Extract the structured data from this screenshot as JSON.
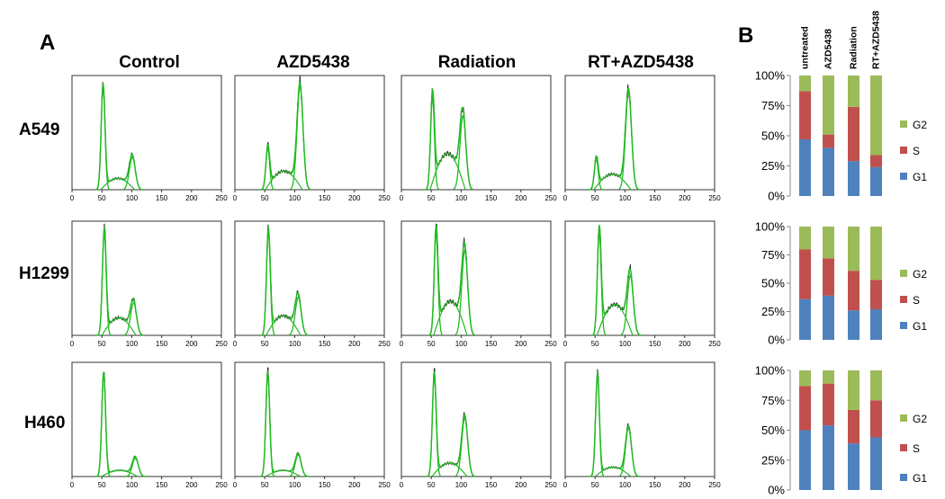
{
  "panel_labels": {
    "a": "A",
    "b": "B"
  },
  "histogram_x_ticks": [
    "0",
    "50",
    "100",
    "150",
    "200",
    "250"
  ],
  "chart_data": [
    {
      "type": "line",
      "panel": "A",
      "title": "",
      "xlabel": "",
      "ylabel": "",
      "xlim": [
        0,
        250
      ],
      "x_ticks": [
        0,
        50,
        100,
        150,
        200,
        250
      ],
      "column_labels": [
        "Control",
        "AZD5438",
        "Radiation",
        "RT+AZD5438"
      ],
      "row_labels": [
        "A549",
        "H1299",
        "H460"
      ],
      "series_colors": {
        "measured": "#222222",
        "fit": "#22bb22"
      },
      "histograms": {
        "A549": [
          {
            "g1_pos": 52,
            "g1_h": 0.95,
            "s_h": 0.11,
            "g2_pos": 101,
            "g2_h": 0.3
          },
          {
            "g1_pos": 55,
            "g1_h": 0.38,
            "s_h": 0.18,
            "g2_pos": 109,
            "g2_h": 0.95
          },
          {
            "g1_pos": 52,
            "g1_h": 0.85,
            "s_h": 0.35,
            "g2_pos": 103,
            "g2_h": 0.68
          },
          {
            "g1_pos": 52,
            "g1_h": 0.28,
            "s_h": 0.15,
            "g2_pos": 106,
            "g2_h": 0.9
          }
        ],
        "H1299": [
          {
            "g1_pos": 54,
            "g1_h": 0.95,
            "s_h": 0.17,
            "g2_pos": 103,
            "g2_h": 0.3
          },
          {
            "g1_pos": 56,
            "g1_h": 0.95,
            "s_h": 0.19,
            "g2_pos": 106,
            "g2_h": 0.35
          },
          {
            "g1_pos": 58,
            "g1_h": 0.94,
            "s_h": 0.33,
            "g2_pos": 106,
            "g2_h": 0.78
          },
          {
            "g1_pos": 57,
            "g1_h": 0.95,
            "s_h": 0.3,
            "g2_pos": 109,
            "g2_h": 0.55
          }
        ],
        "H460": [
          {
            "g1_pos": 53,
            "g1_h": 0.95,
            "s_h": 0.06,
            "g2_pos": 106,
            "g2_h": 0.17
          },
          {
            "g1_pos": 55,
            "g1_h": 0.95,
            "s_h": 0.06,
            "g2_pos": 106,
            "g2_h": 0.2
          },
          {
            "g1_pos": 55,
            "g1_h": 0.93,
            "s_h": 0.13,
            "g2_pos": 106,
            "g2_h": 0.54
          },
          {
            "g1_pos": 54,
            "g1_h": 0.93,
            "s_h": 0.09,
            "g2_pos": 106,
            "g2_h": 0.45
          }
        ]
      }
    },
    {
      "type": "bar",
      "stacked": true,
      "panel": "B",
      "title": "",
      "xlabel": "",
      "ylabel": "",
      "ylim": [
        0,
        100
      ],
      "y_ticks": [
        "0%",
        "25%",
        "50%",
        "75%",
        "100%"
      ],
      "categories": [
        "untreated",
        "AZD5438",
        "Radiation",
        "RT+AZD5438"
      ],
      "legend_position": "right",
      "colors": {
        "G1": "#4f81bd",
        "S": "#c0504d",
        "G2": "#9bbb59"
      },
      "groups": [
        {
          "row": "A549",
          "series": [
            {
              "name": "G1",
              "values": [
                47,
                40,
                29,
                24
              ]
            },
            {
              "name": "S",
              "values": [
                40,
                11,
                45,
                10
              ]
            },
            {
              "name": "G2",
              "values": [
                13,
                49,
                26,
                66
              ]
            }
          ]
        },
        {
          "row": "H1299",
          "series": [
            {
              "name": "G1",
              "values": [
                36,
                39,
                26,
                27
              ]
            },
            {
              "name": "S",
              "values": [
                44,
                33,
                35,
                26
              ]
            },
            {
              "name": "G2",
              "values": [
                20,
                28,
                39,
                47
              ]
            }
          ]
        },
        {
          "row": "H460",
          "series": [
            {
              "name": "G1",
              "values": [
                50,
                54,
                39,
                44
              ]
            },
            {
              "name": "S",
              "values": [
                37,
                35,
                28,
                31
              ]
            },
            {
              "name": "G2",
              "values": [
                13,
                11,
                33,
                25
              ]
            }
          ]
        }
      ]
    }
  ]
}
